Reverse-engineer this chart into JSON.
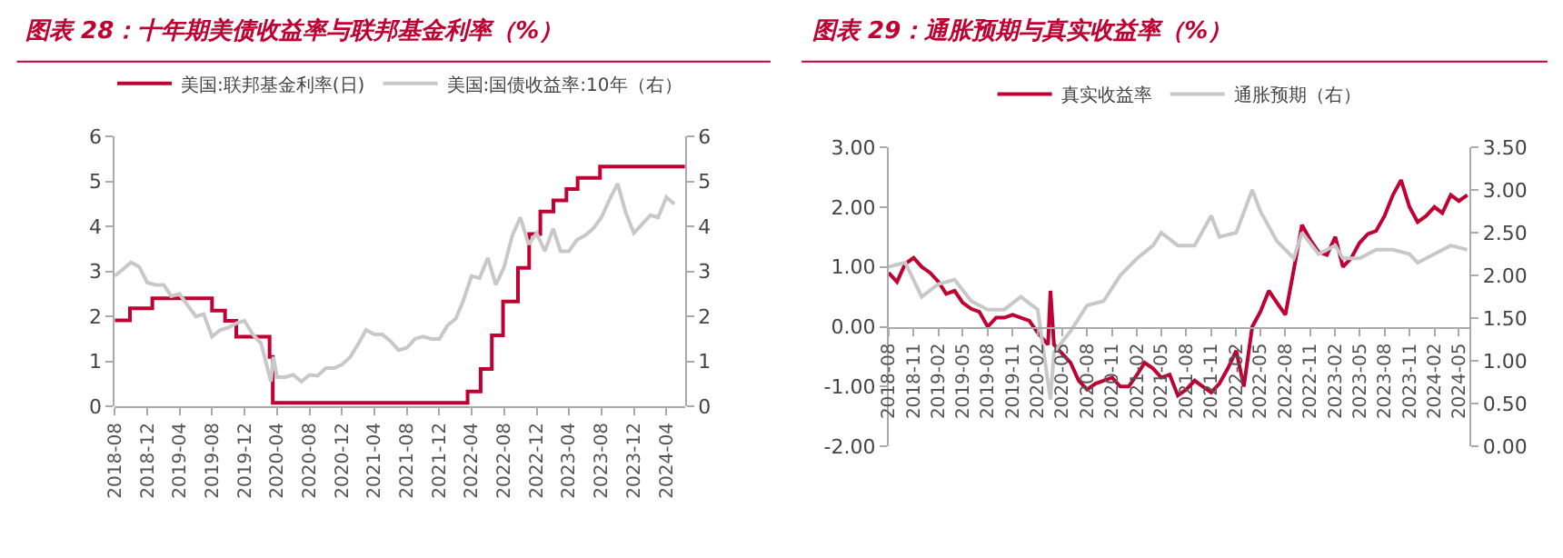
{
  "chart_data": [
    {
      "type": "line",
      "title": "图表 28：十年期美债收益率与联邦基金利率（%）",
      "legend": "top",
      "xlim": [
        "2018-08-01",
        "2024-06-10"
      ],
      "xticks": [
        "2018-08",
        "2018-12",
        "2019-04",
        "2019-08",
        "2019-12",
        "2020-04",
        "2020-08",
        "2020-12",
        "2021-04",
        "2021-08",
        "2021-12",
        "2022-04",
        "2022-08",
        "2022-12",
        "2023-04",
        "2023-08",
        "2023-12",
        "2024-04"
      ],
      "ylim": [
        0,
        6
      ],
      "yticks": [
        0,
        1,
        2,
        3,
        4,
        5,
        6
      ],
      "y2lim": [
        0,
        6
      ],
      "y2ticks": [
        0,
        1,
        2,
        3,
        4,
        5,
        6
      ],
      "series": [
        {
          "name": "美国:联邦基金利率(日)",
          "type": "step",
          "color": "#c00032",
          "x": [
            "2018-08-01",
            "2018-09-27",
            "2018-12-20",
            "2019-08-01",
            "2019-09-19",
            "2019-10-31",
            "2020-03-04",
            "2020-03-16",
            "2022-03-17",
            "2022-05-05",
            "2022-06-16",
            "2022-07-28",
            "2022-09-22",
            "2022-11-03",
            "2022-12-15",
            "2023-02-02",
            "2023-03-23",
            "2023-05-04",
            "2023-07-27",
            "2024-06-10"
          ],
          "values": [
            1.91,
            2.18,
            2.4,
            2.13,
            1.9,
            1.55,
            1.1,
            0.08,
            0.33,
            0.83,
            1.58,
            2.33,
            3.08,
            3.83,
            4.33,
            4.58,
            4.83,
            5.08,
            5.33,
            5.33
          ]
        },
        {
          "name": "美国:国债收益率:10年（右）",
          "axis": "y2",
          "color": "#c8c8c8",
          "x": [
            "2018-08",
            "2018-09",
            "2018-10",
            "2018-11",
            "2018-12",
            "2019-01",
            "2019-02",
            "2019-03",
            "2019-04",
            "2019-05",
            "2019-06",
            "2019-07",
            "2019-08",
            "2019-09",
            "2019-10",
            "2019-11",
            "2019-12",
            "2020-01",
            "2020-02",
            "2020-03-09",
            "2020-03-18",
            "2020-04",
            "2020-05",
            "2020-06",
            "2020-07",
            "2020-08",
            "2020-09",
            "2020-10",
            "2020-11",
            "2020-12",
            "2021-01",
            "2021-02",
            "2021-03",
            "2021-04",
            "2021-05",
            "2021-06",
            "2021-07",
            "2021-08",
            "2021-09",
            "2021-10",
            "2021-11",
            "2021-12",
            "2022-01",
            "2022-02",
            "2022-03",
            "2022-04",
            "2022-05",
            "2022-06",
            "2022-07",
            "2022-08",
            "2022-09",
            "2022-10",
            "2022-11",
            "2022-12",
            "2023-01",
            "2023-02",
            "2023-03",
            "2023-04",
            "2023-05",
            "2023-06",
            "2023-07",
            "2023-08",
            "2023-09",
            "2023-10",
            "2023-11",
            "2023-12",
            "2024-01",
            "2024-02",
            "2024-03",
            "2024-04",
            "2024-05"
          ],
          "values": [
            2.9,
            3.05,
            3.2,
            3.1,
            2.75,
            2.7,
            2.7,
            2.45,
            2.5,
            2.25,
            2.0,
            2.05,
            1.55,
            1.7,
            1.75,
            1.85,
            1.9,
            1.6,
            1.4,
            0.55,
            1.1,
            0.65,
            0.65,
            0.7,
            0.55,
            0.7,
            0.68,
            0.85,
            0.85,
            0.93,
            1.1,
            1.4,
            1.7,
            1.6,
            1.6,
            1.45,
            1.25,
            1.3,
            1.5,
            1.55,
            1.5,
            1.5,
            1.8,
            1.95,
            2.35,
            2.9,
            2.85,
            3.3,
            2.7,
            3.1,
            3.8,
            4.2,
            3.6,
            3.85,
            3.45,
            3.95,
            3.45,
            3.45,
            3.7,
            3.8,
            3.95,
            4.2,
            4.6,
            4.95,
            4.3,
            3.85,
            4.05,
            4.25,
            4.2,
            4.65,
            4.5
          ]
        }
      ]
    },
    {
      "type": "line",
      "title": "图表 29：通胀预期与真实收益率（%）",
      "legend": "top",
      "xlim": [
        "2018-08-01",
        "2024-06-10"
      ],
      "xticks": [
        "2018-08",
        "2018-11",
        "2019-02",
        "2019-05",
        "2019-08",
        "2019-11",
        "2020-02",
        "2020-05",
        "2020-08",
        "2020-11",
        "2021-02",
        "2021-05",
        "2021-08",
        "2021-11",
        "2022-02",
        "2022-05",
        "2022-08",
        "2022-11",
        "2023-02",
        "2023-05",
        "2023-08",
        "2023-11",
        "2024-02",
        "2024-05"
      ],
      "ylim": [
        -2,
        3
      ],
      "yticks": [
        {
          "value": -2,
          "label": "-2.00"
        },
        {
          "value": -1,
          "label": "-1.00"
        },
        {
          "value": 0,
          "label": "0.00"
        },
        {
          "value": 1,
          "label": "1.00"
        },
        {
          "value": 2,
          "label": "2.00"
        },
        {
          "value": 3,
          "label": "3.00"
        }
      ],
      "y2lim": [
        0,
        3.5
      ],
      "y2ticks": [
        {
          "value": 0,
          "label": "0.00"
        },
        {
          "value": 0.5,
          "label": "0.50"
        },
        {
          "value": 1,
          "label": "1.00"
        },
        {
          "value": 1.5,
          "label": "1.50"
        },
        {
          "value": 2,
          "label": "2.00"
        },
        {
          "value": 2.5,
          "label": "2.50"
        },
        {
          "value": 3,
          "label": "3.00"
        },
        {
          "value": 3.5,
          "label": "3.50"
        }
      ],
      "series": [
        {
          "name": "真实收益率",
          "color": "#c00032",
          "x": [
            "2018-08",
            "2018-09",
            "2018-10",
            "2018-11",
            "2018-12",
            "2019-01",
            "2019-02",
            "2019-03",
            "2019-04",
            "2019-05",
            "2019-06",
            "2019-07",
            "2019-08",
            "2019-09",
            "2019-10",
            "2019-11",
            "2019-12",
            "2020-01",
            "2020-02",
            "2020-03-10",
            "2020-03-19",
            "2020-04",
            "2020-05",
            "2020-06",
            "2020-07",
            "2020-08",
            "2020-09",
            "2020-10",
            "2020-11",
            "2020-12",
            "2021-01",
            "2021-02",
            "2021-03",
            "2021-04",
            "2021-05",
            "2021-06",
            "2021-07",
            "2021-08",
            "2021-09",
            "2021-10",
            "2021-11",
            "2021-12",
            "2022-01",
            "2022-02",
            "2022-03",
            "2022-04",
            "2022-05",
            "2022-06",
            "2022-07",
            "2022-08",
            "2022-09",
            "2022-10",
            "2022-11",
            "2022-12",
            "2023-01",
            "2023-02",
            "2023-03",
            "2023-04",
            "2023-05",
            "2023-06",
            "2023-07",
            "2023-08",
            "2023-09",
            "2023-10",
            "2023-11",
            "2023-12",
            "2024-01",
            "2024-02",
            "2024-03",
            "2024-04",
            "2024-05",
            "2024-06"
          ],
          "values": [
            0.9,
            0.75,
            1.05,
            1.15,
            1.0,
            0.9,
            0.75,
            0.55,
            0.6,
            0.4,
            0.3,
            0.25,
            0.0,
            0.15,
            0.15,
            0.2,
            0.15,
            0.1,
            -0.1,
            -0.3,
            0.6,
            -0.3,
            -0.45,
            -0.6,
            -0.9,
            -1.05,
            -0.95,
            -0.9,
            -0.85,
            -1.0,
            -1.0,
            -0.8,
            -0.6,
            -0.7,
            -0.85,
            -0.8,
            -1.15,
            -1.05,
            -0.9,
            -1.0,
            -1.1,
            -0.95,
            -0.7,
            -0.4,
            -1.0,
            0.0,
            0.25,
            0.6,
            0.4,
            0.2,
            0.95,
            1.7,
            1.45,
            1.25,
            1.2,
            1.5,
            1.0,
            1.15,
            1.4,
            1.55,
            1.6,
            1.85,
            2.2,
            2.45,
            2.0,
            1.75,
            1.85,
            2.0,
            1.9,
            2.2,
            2.1,
            2.2
          ]
        },
        {
          "name": "通胀预期（右）",
          "axis": "y2",
          "color": "#c8c8c8",
          "x": [
            "2018-08",
            "2018-10",
            "2018-12",
            "2019-02",
            "2019-04",
            "2019-06",
            "2019-08",
            "2019-10",
            "2019-12",
            "2020-02",
            "2020-03-19",
            "2020-04",
            "2020-06",
            "2020-08",
            "2020-10",
            "2020-12",
            "2021-02",
            "2021-04",
            "2021-05",
            "2021-07",
            "2021-09",
            "2021-11",
            "2021-12",
            "2022-02",
            "2022-04",
            "2022-05",
            "2022-07",
            "2022-09",
            "2022-10",
            "2022-12",
            "2023-02",
            "2023-03",
            "2023-05",
            "2023-07",
            "2023-09",
            "2023-11",
            "2023-12",
            "2024-02",
            "2024-04",
            "2024-06"
          ],
          "values": [
            2.1,
            2.15,
            1.75,
            1.9,
            1.95,
            1.7,
            1.6,
            1.6,
            1.75,
            1.6,
            0.55,
            1.1,
            1.35,
            1.65,
            1.7,
            2.0,
            2.2,
            2.35,
            2.5,
            2.35,
            2.35,
            2.7,
            2.45,
            2.5,
            3.0,
            2.75,
            2.4,
            2.2,
            2.5,
            2.25,
            2.35,
            2.2,
            2.2,
            2.3,
            2.3,
            2.25,
            2.15,
            2.25,
            2.35,
            2.3
          ]
        }
      ]
    }
  ]
}
